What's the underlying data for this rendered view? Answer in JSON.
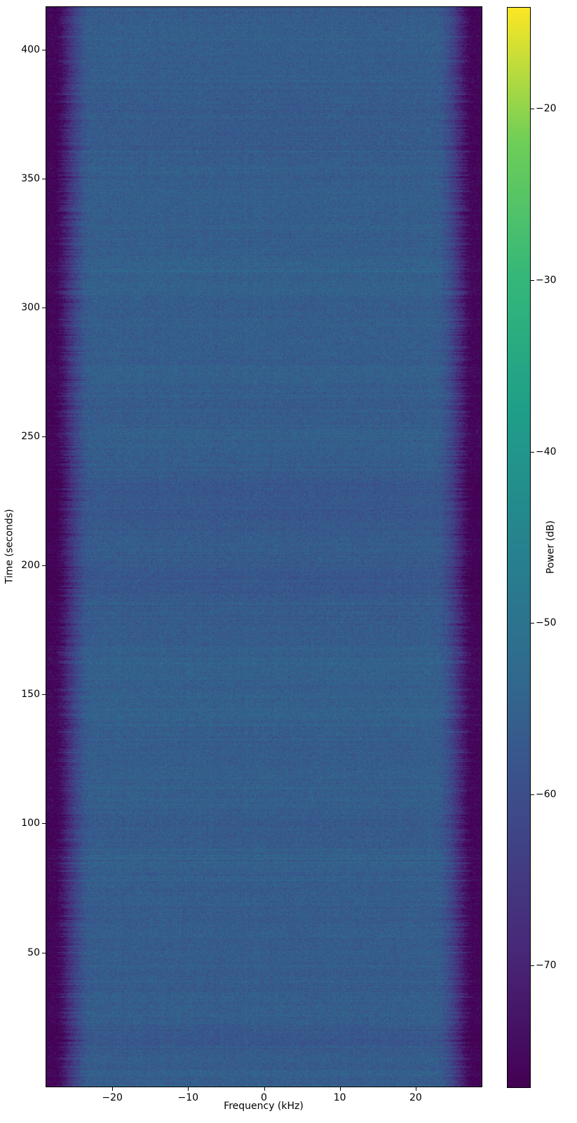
{
  "chart_data": {
    "type": "heatmap",
    "subtype": "spectrogram",
    "title": "",
    "xlabel": "Frequency (kHz)",
    "ylabel": "Time (seconds)",
    "xlim": [
      -28.7,
      28.7
    ],
    "ylim": [
      -2,
      416.5
    ],
    "xticks": [
      -20,
      -10,
      0,
      10,
      20
    ],
    "yticks": [
      400,
      350,
      300,
      250,
      200,
      150,
      100,
      50
    ],
    "grid": false,
    "colormap": "viridis",
    "colormap_hex_endpoints": {
      "low": "#440154",
      "high": "#fde725"
    },
    "colorbar": {
      "label": "Power (dB)",
      "ticks": [
        -20,
        -30,
        -40,
        -50,
        -60,
        -70
      ],
      "vmin": -77.1,
      "vmax": -14.1,
      "side": "right"
    },
    "signal": {
      "base_power_db": -56.2,
      "noise_std_db": 2.5,
      "passband_khz": 22.8,
      "stopband_khz": 27.0,
      "stopband_atten_db": 20.5,
      "description": "Wideband noise floor (~-56 dB) across full span with spectral roll-off to ~-77 dB at both band edges and faint intermittent brighter time slices"
    }
  }
}
